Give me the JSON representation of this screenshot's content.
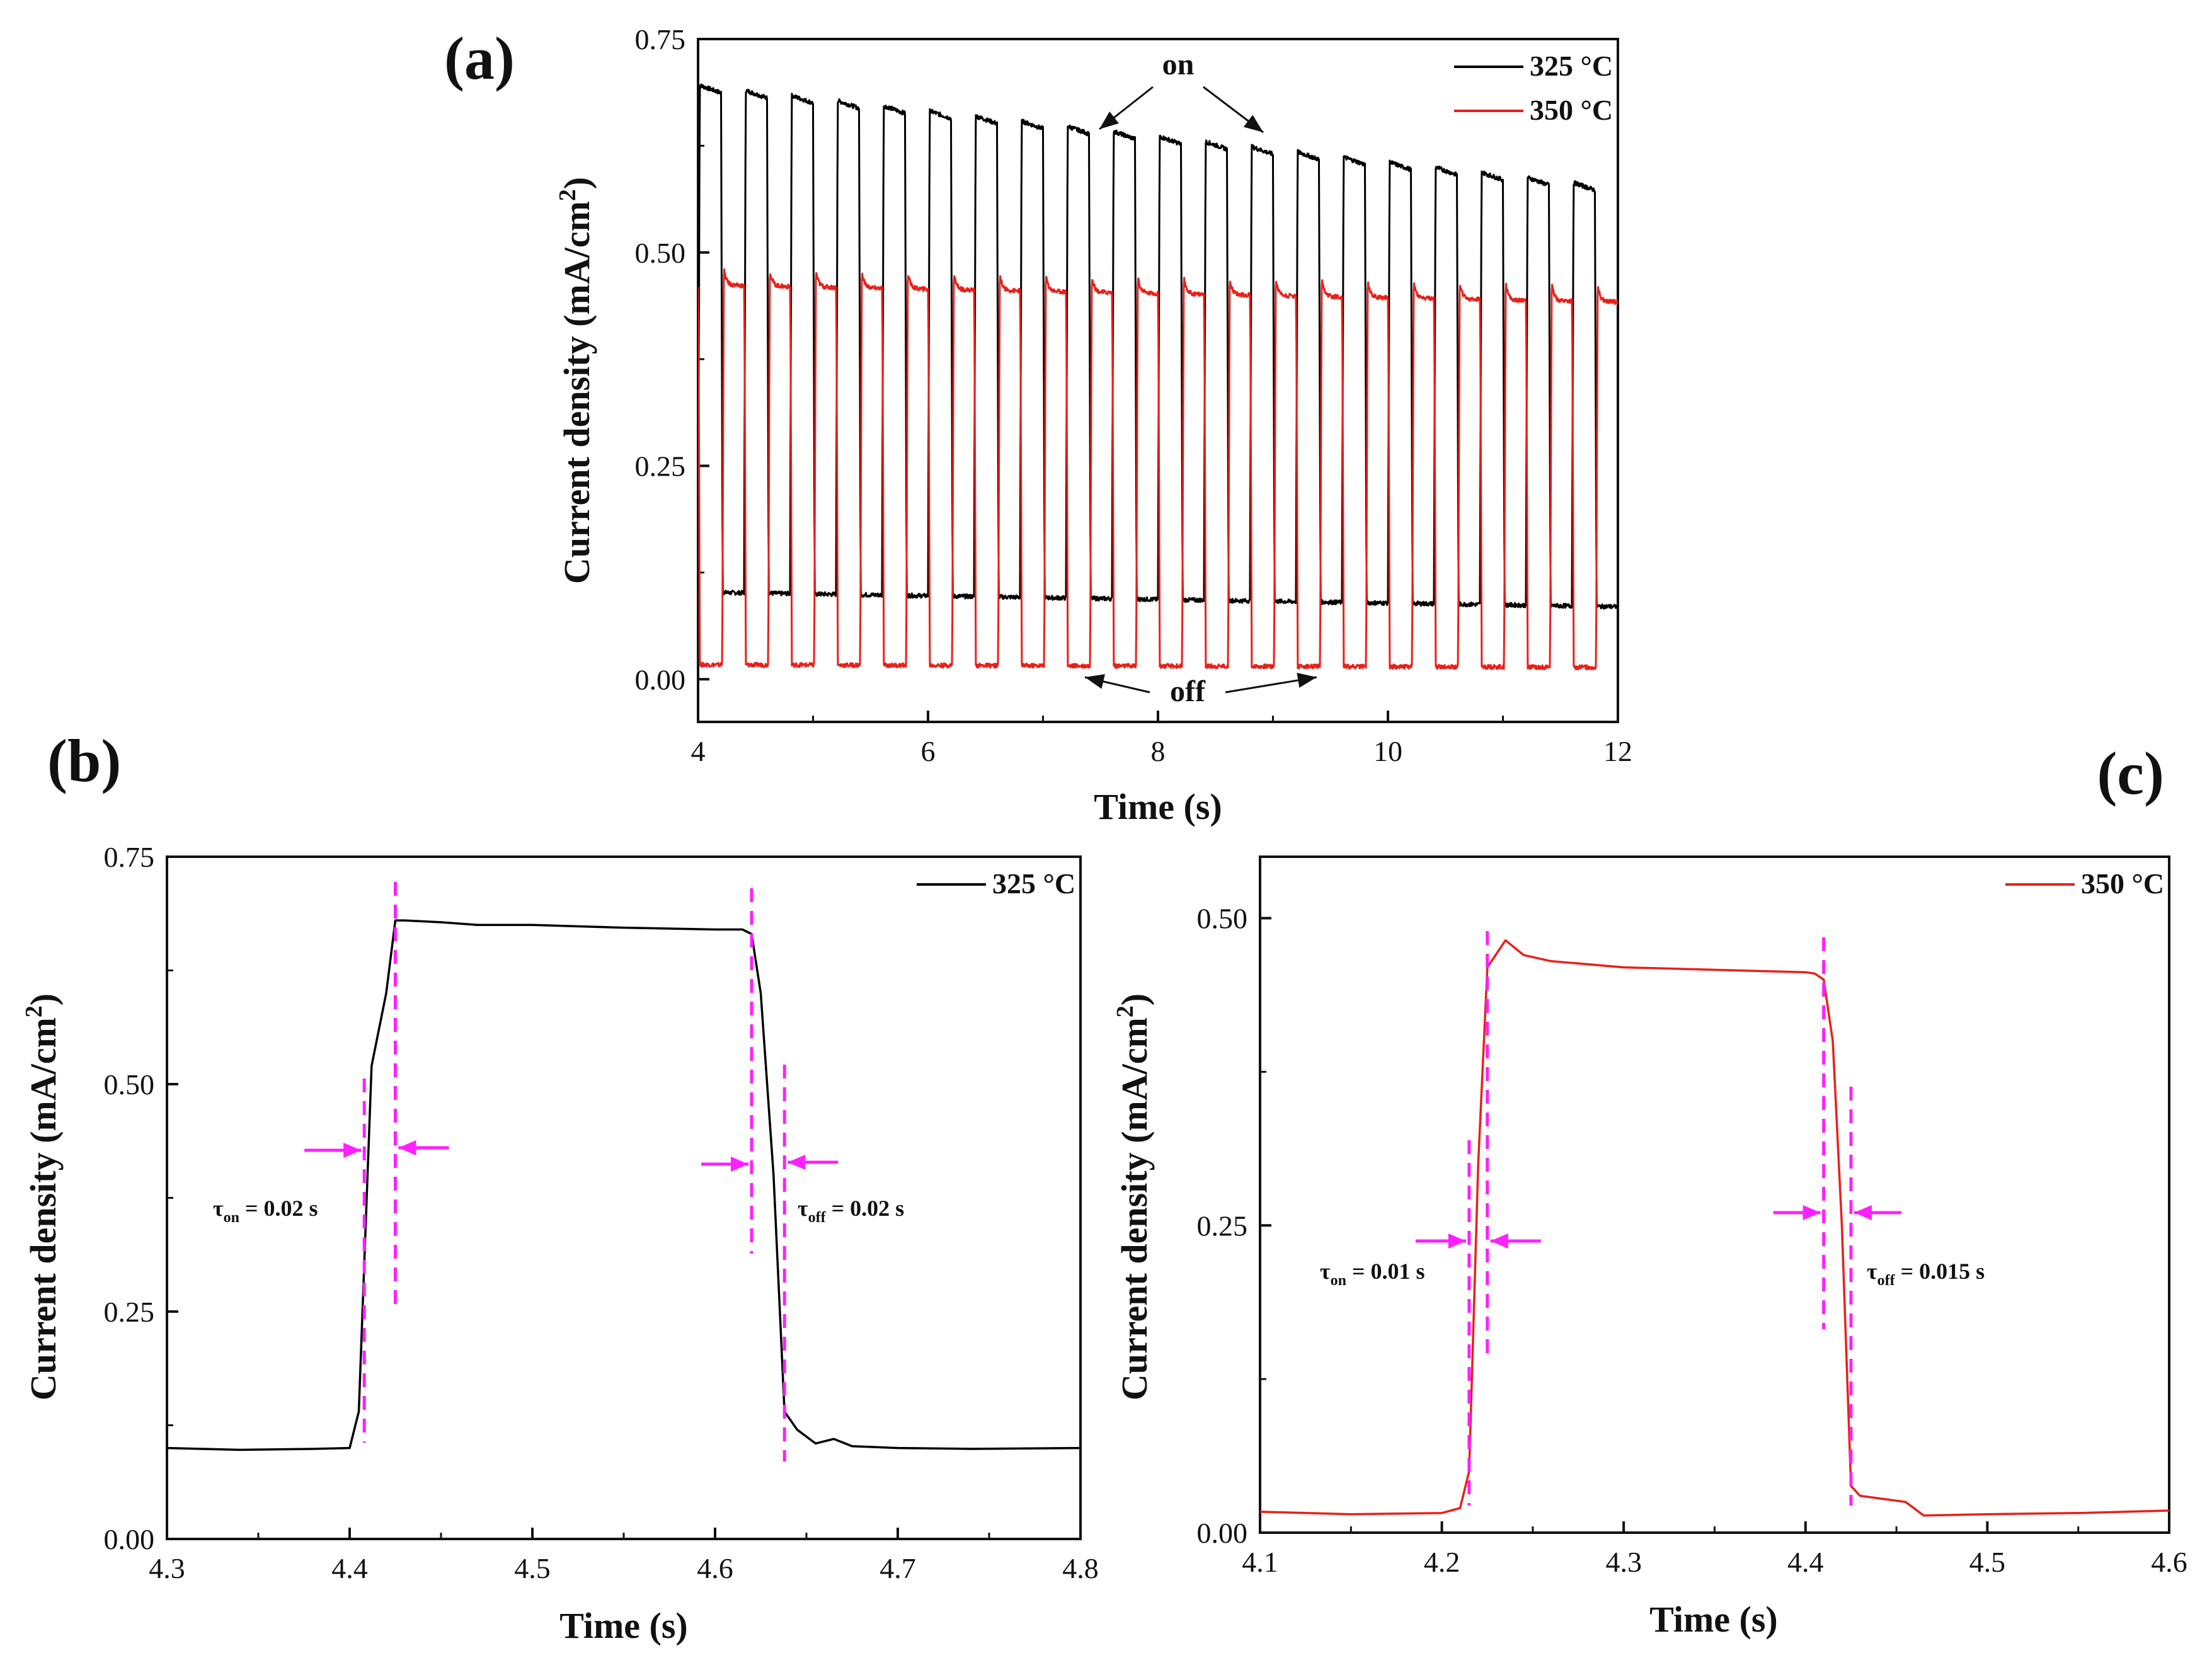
{
  "colors": {
    "series_325": "#000000",
    "series_350": "#e8201a",
    "marker": "#ff1fff",
    "axis": "#111111"
  },
  "chart_data": [
    {
      "id": "a",
      "panel_label": "(a)",
      "type": "line",
      "xlabel": "Time (s)",
      "ylabel_prefix": "Current density (mA/cm",
      "ylabel_sup": "2",
      "ylabel_suffix": ")",
      "xlim": [
        4,
        12
      ],
      "ylim": [
        -0.05,
        0.75
      ],
      "xticks": [
        4,
        6,
        8,
        10,
        12
      ],
      "xtick_labels": [
        "4",
        "6",
        "8",
        "10",
        "12"
      ],
      "yticks": [
        0,
        0.25,
        0.5,
        0.75
      ],
      "ytick_labels": [
        "0.00",
        "0.25",
        "0.50",
        "0.75"
      ],
      "legend_position": "top-right",
      "legend": [
        "325 °C",
        "350 °C"
      ],
      "annotations": {
        "on": "on",
        "off": "off"
      },
      "series": [
        {
          "name": "325 °C",
          "color": "#000000",
          "period": 0.4,
          "duty": 0.5,
          "start": 4.0,
          "on_start": 0.69,
          "on_end": 0.57,
          "off_start": 0.102,
          "off_end": 0.085
        },
        {
          "name": "350 °C",
          "color": "#e8201a",
          "period": 0.4,
          "duty": 0.48,
          "start": 4.0,
          "phase": 0.21,
          "on_start": 0.47,
          "on_end": 0.45,
          "off_start": 0.017,
          "off_end": 0.014
        }
      ]
    },
    {
      "id": "b",
      "panel_label": "(b)",
      "type": "line",
      "xlabel": "Time (s)",
      "ylabel_prefix": "Current density (mA/cm",
      "ylabel_sup": "2",
      "ylabel_suffix": ")",
      "xlim": [
        4.3,
        4.8
      ],
      "ylim": [
        0,
        0.75
      ],
      "xticks": [
        4.3,
        4.4,
        4.5,
        4.6,
        4.7,
        4.8
      ],
      "xtick_labels": [
        "4.3",
        "4.4",
        "4.5",
        "4.6",
        "4.7",
        "4.8"
      ],
      "yticks": [
        0,
        0.25,
        0.5,
        0.75
      ],
      "ytick_labels": [
        "0.00",
        "0.25",
        "0.50",
        "0.75"
      ],
      "legend_position": "top-right",
      "legend": [
        "325 °C"
      ],
      "series": [
        {
          "name": "325 °C",
          "color": "#000000",
          "x": [
            4.3,
            4.34,
            4.38,
            4.4,
            4.405,
            4.412,
            4.42,
            4.425,
            4.43,
            4.45,
            4.47,
            4.5,
            4.55,
            4.6,
            4.615,
            4.62,
            4.625,
            4.632,
            4.638,
            4.645,
            4.655,
            4.665,
            4.675,
            4.7,
            4.74,
            4.8
          ],
          "y": [
            0.1,
            0.098,
            0.099,
            0.1,
            0.14,
            0.52,
            0.6,
            0.68,
            0.68,
            0.678,
            0.675,
            0.675,
            0.672,
            0.67,
            0.67,
            0.665,
            0.6,
            0.4,
            0.14,
            0.12,
            0.105,
            0.11,
            0.102,
            0.1,
            0.099,
            0.1
          ]
        }
      ],
      "markers": {
        "on_lines": [
          4.408,
          4.425
        ],
        "off_lines": [
          4.62,
          4.638
        ],
        "tau_on_text": "τ",
        "tau_on_sub": "on",
        "tau_on_value": " = 0.02 s",
        "tau_off_text": "τ",
        "tau_off_sub": "off",
        "tau_off_value": " = 0.02 s"
      }
    },
    {
      "id": "c",
      "panel_label": "(c)",
      "type": "line",
      "xlabel": "Time (s)",
      "ylabel_prefix": "Current density (mA/cm",
      "ylabel_sup": "2",
      "ylabel_suffix": ")",
      "xlim": [
        4.1,
        4.6
      ],
      "ylim": [
        0,
        0.55
      ],
      "xticks": [
        4.1,
        4.2,
        4.3,
        4.4,
        4.5,
        4.6
      ],
      "xtick_labels": [
        "4.1",
        "4.2",
        "4.3",
        "4.4",
        "4.5",
        "4.6"
      ],
      "yticks": [
        0,
        0.25,
        0.5
      ],
      "ytick_labels": [
        "0.00",
        "0.25",
        "0.50"
      ],
      "legend_position": "top-right",
      "legend": [
        "350 °C"
      ],
      "series": [
        {
          "name": "350 °C",
          "color": "#e8201a",
          "x": [
            4.1,
            4.15,
            4.2,
            4.21,
            4.215,
            4.22,
            4.225,
            4.235,
            4.245,
            4.26,
            4.3,
            4.35,
            4.4,
            4.405,
            4.41,
            4.415,
            4.42,
            4.425,
            4.43,
            4.44,
            4.455,
            4.465,
            4.5,
            4.55,
            4.6
          ],
          "y": [
            0.017,
            0.015,
            0.016,
            0.02,
            0.05,
            0.3,
            0.46,
            0.482,
            0.47,
            0.465,
            0.46,
            0.458,
            0.456,
            0.455,
            0.45,
            0.4,
            0.25,
            0.038,
            0.03,
            0.028,
            0.025,
            0.014,
            0.015,
            0.016,
            0.018
          ]
        }
      ],
      "markers": {
        "on_lines": [
          4.215,
          4.225
        ],
        "off_lines": [
          4.41,
          4.425
        ],
        "tau_on_text": "τ",
        "tau_on_sub": "on",
        "tau_on_value": " = 0.01 s",
        "tau_off_text": "τ",
        "tau_off_sub": "off",
        "tau_off_value": " = 0.015 s"
      }
    }
  ]
}
